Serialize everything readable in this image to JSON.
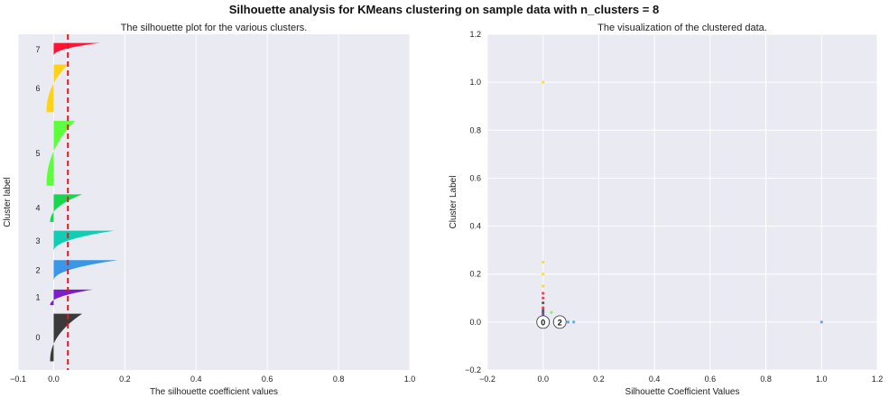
{
  "suptitle": "Silhouette analysis for KMeans clustering on sample data with n_clusters = 8",
  "colors": {
    "background": "#eaeaf2",
    "grid": "#ffffff",
    "average_line": "#e8141a",
    "cluster_colors": [
      "#3a3a3a",
      "#7a1fc9",
      "#3a97e8",
      "#12cdb4",
      "#18d64f",
      "#5cff3c",
      "#ffd21a",
      "#ff1434"
    ]
  },
  "chart_data": [
    {
      "type": "area",
      "title": "The silhouette plot for the various clusters.",
      "xlabel": "The silhouette coefficient values",
      "ylabel": "Cluster label",
      "xlim": [
        -0.1,
        1.0
      ],
      "xticks": [
        -0.1,
        0.0,
        0.2,
        0.4,
        0.6,
        0.8,
        1.0
      ],
      "xtick_labels": [
        "−0.1",
        "0.0",
        "0.2",
        "0.4",
        "0.6",
        "0.8",
        "1.0"
      ],
      "grid": true,
      "average_silhouette": 0.04,
      "clusters": [
        {
          "label": "0",
          "max": 0.08,
          "min": -0.01,
          "size": 55
        },
        {
          "label": "1",
          "max": 0.11,
          "min": -0.01,
          "size": 18
        },
        {
          "label": "2",
          "max": 0.18,
          "min": 0.0,
          "size": 24
        },
        {
          "label": "3",
          "max": 0.17,
          "min": 0.0,
          "size": 24
        },
        {
          "label": "4",
          "max": 0.08,
          "min": -0.01,
          "size": 32
        },
        {
          "label": "5",
          "max": 0.06,
          "min": -0.02,
          "size": 75
        },
        {
          "label": "6",
          "max": 0.04,
          "min": -0.02,
          "size": 55
        },
        {
          "label": "7",
          "max": 0.13,
          "min": 0.0,
          "size": 15
        }
      ]
    },
    {
      "type": "scatter",
      "title": "The visualization of the clustered data.",
      "xlabel": "Silhouette Coefficient Values",
      "ylabel": "Cluster Label",
      "xlim": [
        -0.2,
        1.2
      ],
      "ylim": [
        -0.2,
        1.2
      ],
      "xticks": [
        -0.2,
        0.0,
        0.2,
        0.4,
        0.6,
        0.8,
        1.0,
        1.2
      ],
      "xtick_labels": [
        "−0.2",
        "0.0",
        "0.2",
        "0.4",
        "0.6",
        "0.8",
        "1.0",
        "1.2"
      ],
      "yticks": [
        -0.2,
        0.0,
        0.2,
        0.4,
        0.6,
        0.8,
        1.0,
        1.2
      ],
      "ytick_labels": [
        "−0.2",
        "0.0",
        "0.2",
        "0.4",
        "0.6",
        "0.8",
        "1.0",
        "1.2"
      ],
      "grid": true,
      "points": [
        {
          "x": 0.0,
          "y": 1.0,
          "cluster": 6
        },
        {
          "x": 0.0,
          "y": 0.25,
          "cluster": 6
        },
        {
          "x": 0.0,
          "y": 0.2,
          "cluster": 6
        },
        {
          "x": 0.0,
          "y": 0.15,
          "cluster": 6
        },
        {
          "x": 0.0,
          "y": 0.12,
          "cluster": 7
        },
        {
          "x": 0.0,
          "y": 0.1,
          "cluster": 7
        },
        {
          "x": 0.0,
          "y": 0.08,
          "cluster": 0
        },
        {
          "x": 0.0,
          "y": 0.06,
          "cluster": 7
        },
        {
          "x": 0.0,
          "y": 0.05,
          "cluster": 0
        },
        {
          "x": 0.0,
          "y": 0.04,
          "cluster": 0
        },
        {
          "x": 0.0,
          "y": 0.03,
          "cluster": 1
        },
        {
          "x": 0.0,
          "y": 0.02,
          "cluster": 0
        },
        {
          "x": 0.0,
          "y": 0.01,
          "cluster": 0
        },
        {
          "x": 0.0,
          "y": 0.0,
          "cluster": 0
        },
        {
          "x": 0.03,
          "y": 0.04,
          "cluster": 5
        },
        {
          "x": 0.02,
          "y": 0.0,
          "cluster": 4
        },
        {
          "x": 0.04,
          "y": 0.0,
          "cluster": 2
        },
        {
          "x": 0.07,
          "y": 0.0,
          "cluster": 2
        },
        {
          "x": 0.09,
          "y": 0.0,
          "cluster": 2
        },
        {
          "x": 0.11,
          "y": 0.0,
          "cluster": 2
        },
        {
          "x": 1.0,
          "y": 0.0,
          "cluster": 2
        }
      ],
      "centers": [
        {
          "label": "0",
          "x": 0.0,
          "y": 0.0
        },
        {
          "label": "2",
          "x": 0.06,
          "y": 0.0
        }
      ]
    }
  ]
}
